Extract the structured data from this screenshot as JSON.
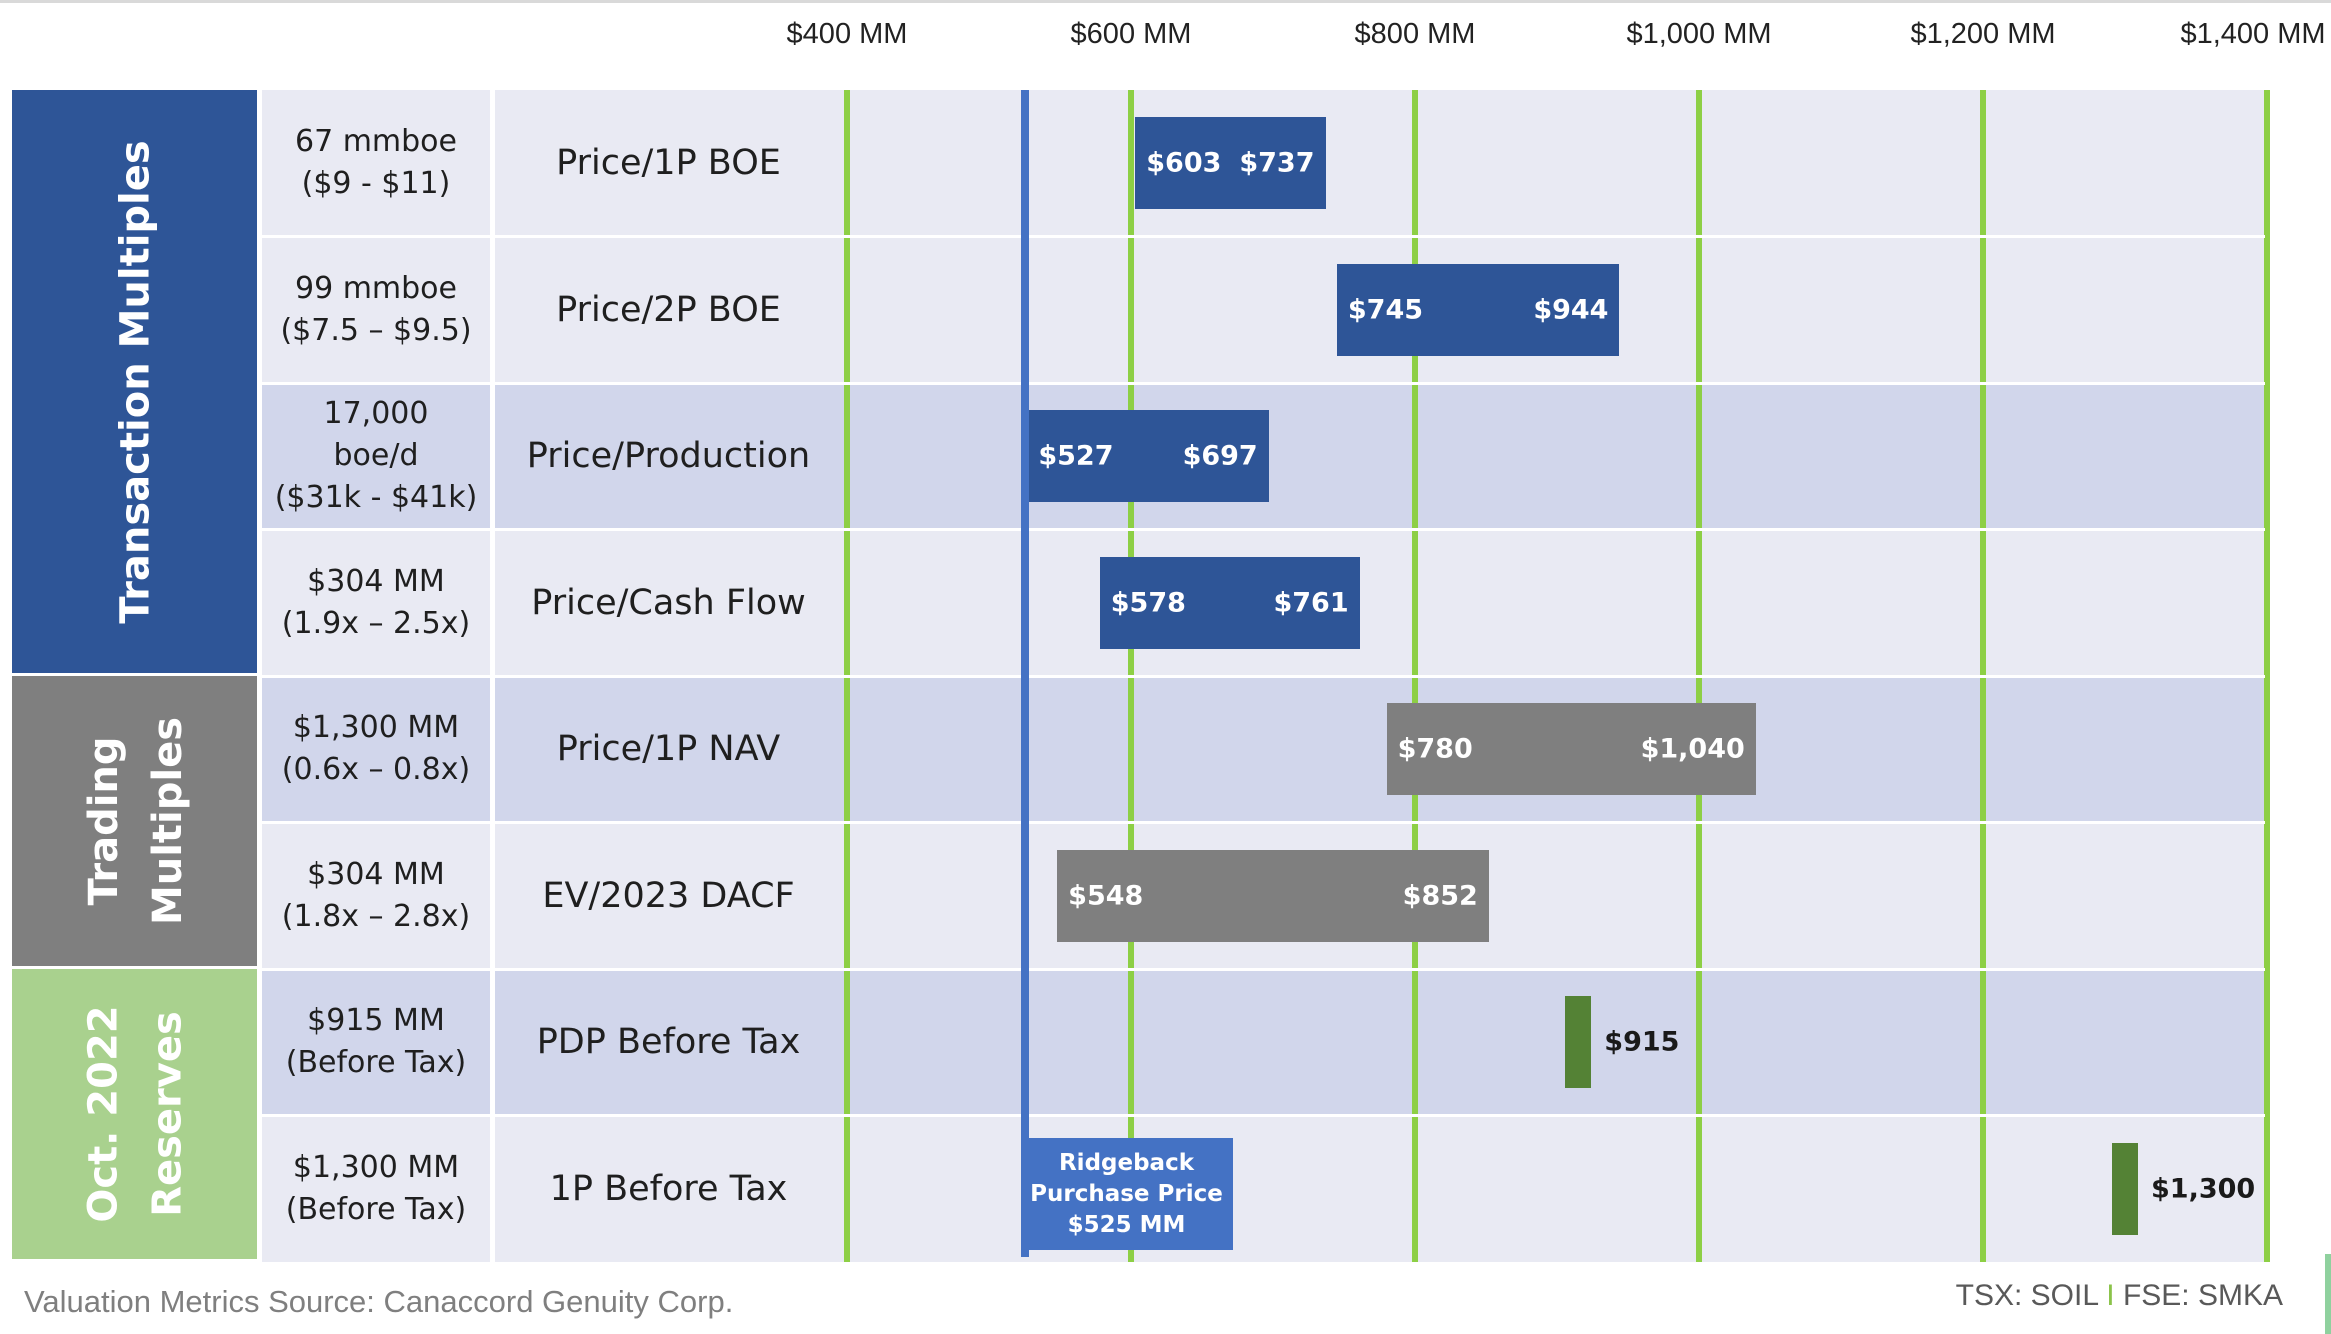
{
  "colors": {
    "transaction": "#2e5597",
    "trading": "#7f7f7f",
    "reserves": "#8bbd5d",
    "reserves_group_bg": "#a9d18e",
    "gridline": "#8dcf45",
    "reference": "#4472c4",
    "row_light": "#e9eaf3",
    "row_dark": "#d1d6eb"
  },
  "chart_data": {
    "type": "floating-bar",
    "xlim": [
      400,
      1400
    ],
    "x_ticks": [
      400,
      600,
      800,
      1000,
      1200,
      1400
    ],
    "x_tick_labels": [
      "$400 MM",
      "$600 MM",
      "$800 MM",
      "$1,000 MM",
      "$1,200 MM",
      "$1,400 MM"
    ],
    "grid": true,
    "groups": [
      {
        "label": "Transaction Multiples",
        "lines": [
          "Transaction Multiples"
        ],
        "color_key": "transaction",
        "rows": 4
      },
      {
        "label": "Trading Multiples",
        "lines": [
          "Trading",
          "Multiples"
        ],
        "color_key": "trading",
        "rows": 2
      },
      {
        "label": "Oct. 2022 Reserves",
        "lines": [
          "Oct. 2022",
          "Reserves"
        ],
        "color_key": "reserves_group_bg",
        "rows": 2
      }
    ],
    "rows": [
      {
        "basis": [
          "67 mmboe",
          "($9 - $11)"
        ],
        "metric": "Price/1P BOE",
        "low": 603,
        "high": 737,
        "low_label": "$603",
        "high_label": "$737",
        "series": "transaction",
        "shade": "light"
      },
      {
        "basis": [
          "99 mmboe",
          "($7.5 – $9.5)"
        ],
        "metric": "Price/2P BOE",
        "low": 745,
        "high": 944,
        "low_label": "$745",
        "high_label": "$944",
        "series": "transaction",
        "shade": "light"
      },
      {
        "basis": [
          "17,000",
          "boe/d",
          "($31k - $41k)"
        ],
        "metric": "Price/Production",
        "low": 527,
        "high": 697,
        "low_label": "$527",
        "high_label": "$697",
        "series": "transaction",
        "shade": "dark"
      },
      {
        "basis": [
          "$304 MM",
          "(1.9x – 2.5x)"
        ],
        "metric": "Price/Cash Flow",
        "low": 578,
        "high": 761,
        "low_label": "$578",
        "high_label": "$761",
        "series": "transaction",
        "shade": "light"
      },
      {
        "basis": [
          "$1,300 MM",
          "(0.6x – 0.8x)"
        ],
        "metric": "Price/1P NAV",
        "low": 780,
        "high": 1040,
        "low_label": "$780",
        "high_label": "$1,040",
        "series": "trading",
        "shade": "dark"
      },
      {
        "basis": [
          "$304 MM",
          "(1.8x – 2.8x)"
        ],
        "metric": "EV/2023 DACF",
        "low": 548,
        "high": 852,
        "low_label": "$548",
        "high_label": "$852",
        "series": "trading",
        "shade": "light"
      },
      {
        "basis": [
          "$915 MM",
          "(Before Tax)"
        ],
        "metric": "PDP Before Tax",
        "value": 915,
        "value_label": "$915",
        "series": "reserves",
        "shade": "dark"
      },
      {
        "basis": [
          "$1,300 MM",
          "(Before Tax)"
        ],
        "metric": "1P Before Tax",
        "value": 1300,
        "value_label": "$1,300",
        "series": "reserves",
        "shade": "light"
      }
    ],
    "reference": {
      "value": 525,
      "lines": [
        "Ridgeback",
        "Purchase Price",
        "$525 MM"
      ]
    }
  },
  "footer": {
    "source": "Valuation Metrics Source: Canaccord Genuity Corp.",
    "ticker_left": "TSX: SOIL",
    "ticker_sep": "I",
    "ticker_right": "FSE: SMKA"
  }
}
